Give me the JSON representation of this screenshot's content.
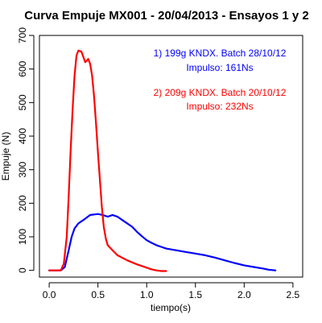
{
  "chart_data": {
    "type": "line",
    "title": "Curva Empuje MX001 - 20/04/2013 - Ensayos 1 y 2",
    "xlabel": "tiempo(s)",
    "ylabel": "Empuje (N)",
    "xlim": [
      -0.1,
      2.6
    ],
    "ylim": [
      -20,
      700
    ],
    "xticks": [
      0.0,
      0.5,
      1.0,
      1.5,
      2.0,
      2.5
    ],
    "xtick_labels": [
      "0.0",
      "0.5",
      "1.0",
      "1.5",
      "2.0",
      "2.5"
    ],
    "yticks": [
      0,
      100,
      200,
      300,
      400,
      500,
      600,
      700
    ],
    "ytick_labels": [
      "0",
      "100",
      "200",
      "300",
      "400",
      "500",
      "600",
      "700"
    ],
    "grid": false,
    "annotations": [
      {
        "line1": "1) 199g KNDX. Batch 28/10/12",
        "line2": "Impulso: 161Ns",
        "color": "#0000ff"
      },
      {
        "line1": "2) 209g KNDX. Batch 20/10/12",
        "line2": "Impulso: 232Ns",
        "color": "#ff0000"
      }
    ],
    "series": [
      {
        "color": "#0000ff",
        "x": [
          0.0,
          0.12,
          0.16,
          0.2,
          0.23,
          0.26,
          0.3,
          0.35,
          0.42,
          0.5,
          0.55,
          0.6,
          0.65,
          0.7,
          0.75,
          0.8,
          0.85,
          0.9,
          0.95,
          1.0,
          1.05,
          1.1,
          1.15,
          1.2,
          1.3,
          1.4,
          1.5,
          1.6,
          1.7,
          1.8,
          1.9,
          2.0,
          2.1,
          2.2,
          2.25,
          2.32
        ],
        "y": [
          0,
          0,
          10,
          60,
          100,
          125,
          140,
          150,
          165,
          168,
          165,
          160,
          165,
          160,
          150,
          140,
          130,
          115,
          102,
          90,
          82,
          75,
          70,
          65,
          60,
          55,
          50,
          45,
          38,
          30,
          22,
          15,
          10,
          5,
          2,
          0
        ]
      },
      {
        "color": "#ff0000",
        "x": [
          0.0,
          0.12,
          0.15,
          0.18,
          0.2,
          0.22,
          0.24,
          0.26,
          0.28,
          0.3,
          0.33,
          0.37,
          0.4,
          0.42,
          0.44,
          0.46,
          0.48,
          0.5,
          0.52,
          0.54,
          0.56,
          0.58,
          0.6,
          0.65,
          0.7,
          0.8,
          0.9,
          1.0,
          1.05,
          1.1,
          1.15,
          1.2
        ],
        "y": [
          0,
          0,
          20,
          100,
          220,
          360,
          480,
          580,
          640,
          655,
          652,
          620,
          630,
          615,
          580,
          520,
          440,
          350,
          270,
          190,
          130,
          95,
          75,
          60,
          45,
          30,
          18,
          8,
          3,
          0,
          -2,
          -2
        ]
      }
    ]
  }
}
